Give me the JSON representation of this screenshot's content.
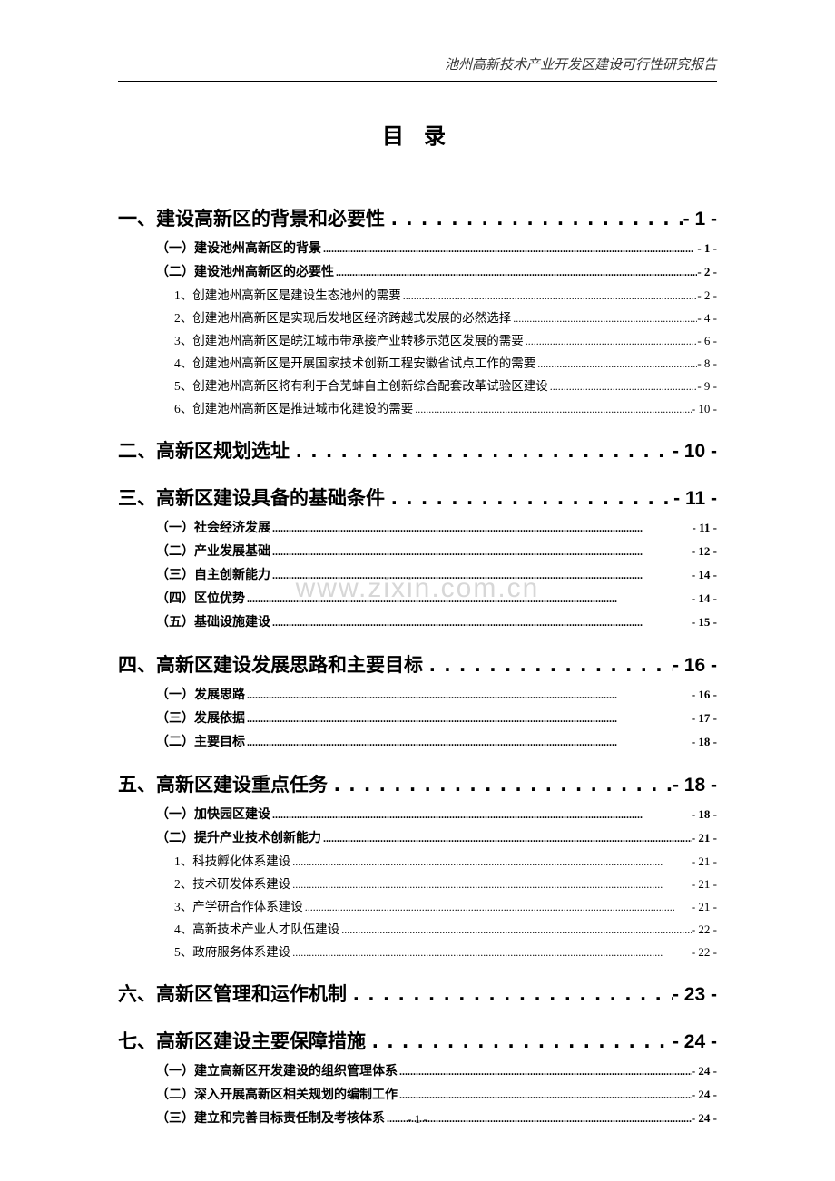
{
  "header": "池州高新技术产业开发区建设可行性研究报告",
  "title": "目 录",
  "watermark": "www.zixin.com.cn",
  "footer": "- 1 -",
  "toc": [
    {
      "level": 1,
      "label": "一、建设高新区的背景和必要性",
      "page": "- 1 -"
    },
    {
      "level": 2,
      "label": "（一）建设池州高新区的背景",
      "page": "- 1 -"
    },
    {
      "level": 2,
      "label": "（二）建设池州高新区的必要性",
      "page": "- 2 -"
    },
    {
      "level": 3,
      "label": "1、创建池州高新区是建设生态池州的需要",
      "page": "- 2 -"
    },
    {
      "level": 3,
      "label": "2、创建池州高新区是实现后发地区经济跨越式发展的必然选择",
      "page": "- 4 -"
    },
    {
      "level": 3,
      "label": "3、创建池州高新区是皖江城市带承接产业转移示范区发展的需要",
      "page": "- 6 -"
    },
    {
      "level": 3,
      "label": "4、创建池州高新区是开展国家技术创新工程安徽省试点工作的需要",
      "page": "- 8 -"
    },
    {
      "level": 3,
      "label": "5、创建池州高新区将有利于合芜蚌自主创新综合配套改革试验区建设",
      "page": "- 9 -"
    },
    {
      "level": 3,
      "label": "6、创建池州高新区是推进城市化建设的需要",
      "page": "- 10 -"
    },
    {
      "level": 1,
      "label": "二、高新区规划选址",
      "page": "- 10 -"
    },
    {
      "level": 1,
      "label": "三、高新区建设具备的基础条件",
      "page": "- 11 -"
    },
    {
      "level": 2,
      "label": "（一）社会经济发展",
      "page": "- 11 -"
    },
    {
      "level": 2,
      "label": "（二）产业发展基础",
      "page": "- 12 -"
    },
    {
      "level": 2,
      "label": "（三）自主创新能力",
      "page": "- 14 -"
    },
    {
      "level": 2,
      "label": "（四）区位优势",
      "page": "- 14 -"
    },
    {
      "level": 2,
      "label": "（五）基础设施建设",
      "page": "- 15 -"
    },
    {
      "level": 1,
      "label": "四、高新区建设发展思路和主要目标",
      "page": "- 16 -"
    },
    {
      "level": 2,
      "label": "（一）发展思路",
      "page": "- 16 -"
    },
    {
      "level": 2,
      "label": "（三）发展依据",
      "page": "- 17 -"
    },
    {
      "level": 2,
      "label": "（二）主要目标",
      "page": "- 18 -"
    },
    {
      "level": 1,
      "label": "五、高新区建设重点任务",
      "page": "- 18 -"
    },
    {
      "level": 2,
      "label": "（一）加快园区建设",
      "page": "- 18 -"
    },
    {
      "level": 2,
      "label": "（二）提升产业技术创新能力",
      "page": "- 21 -"
    },
    {
      "level": 3,
      "label": "1、科技孵化体系建设",
      "page": "- 21 -"
    },
    {
      "level": 3,
      "label": "2、技术研发体系建设",
      "page": "- 21 -"
    },
    {
      "level": 3,
      "label": "3、产学研合作体系建设",
      "page": "- 21 -"
    },
    {
      "level": 3,
      "label": "4、高新技术产业人才队伍建设",
      "page": "- 22 -"
    },
    {
      "level": 3,
      "label": "5、政府服务体系建设",
      "page": "- 22 -"
    },
    {
      "level": 1,
      "label": "六、高新区管理和运作机制",
      "page": "- 23 -"
    },
    {
      "level": 1,
      "label": "七、高新区建设主要保障措施",
      "page": "- 24 -"
    },
    {
      "level": 2,
      "label": "（一）建立高新区开发建设的组织管理体系",
      "page": "- 24 -"
    },
    {
      "level": 2,
      "label": "（二）深入开展高新区相关规划的编制工作",
      "page": "- 24 -"
    },
    {
      "level": 2,
      "label": "（三）建立和完善目标责任制及考核体系",
      "page": "- 24 -"
    }
  ],
  "dots_l1": "..................................",
  "dots_l2": "........................................................................................................................................",
  "dots_l3": "........................................................................................................................................"
}
